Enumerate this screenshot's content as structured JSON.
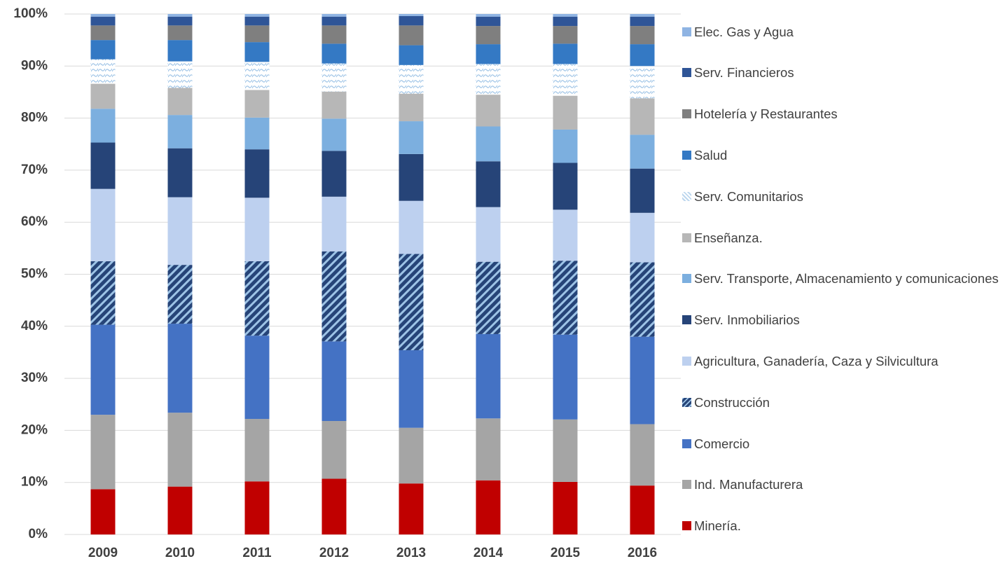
{
  "chart_data": {
    "type": "stacked_bar",
    "categories": [
      "2009",
      "2010",
      "2011",
      "2012",
      "2013",
      "2014",
      "2015",
      "2016"
    ],
    "ylim": [
      0,
      100
    ],
    "yticks": [
      {
        "value": 0,
        "label": "0%"
      },
      {
        "value": 10,
        "label": "10%"
      },
      {
        "value": 20,
        "label": "20%"
      },
      {
        "value": 30,
        "label": "30%"
      },
      {
        "value": 40,
        "label": "40%"
      },
      {
        "value": 50,
        "label": "50%"
      },
      {
        "value": 60,
        "label": "60%"
      },
      {
        "value": 70,
        "label": "70%"
      },
      {
        "value": 80,
        "label": "80%"
      },
      {
        "value": 90,
        "label": "90%"
      },
      {
        "value": 100,
        "label": "100%"
      }
    ],
    "grid": true,
    "legend": "right",
    "series": [
      {
        "name": "Minería.",
        "color": "#c00000",
        "values": [
          8.7,
          9.2,
          10.2,
          10.7,
          9.8,
          10.4,
          10.1,
          9.4
        ]
      },
      {
        "name": "Ind. Manufacturera",
        "color": "#a5a5a5",
        "values": [
          14.3,
          14.2,
          12.0,
          11.1,
          10.7,
          11.9,
          12.0,
          11.8
        ]
      },
      {
        "name": "Comercio",
        "color": "#4472c4",
        "values": [
          17.3,
          17.1,
          16.0,
          15.3,
          14.9,
          16.2,
          16.3,
          16.8
        ]
      },
      {
        "name": "Construcción",
        "color": "#264478",
        "pattern": "diagonal",
        "values": [
          12.2,
          11.3,
          14.3,
          17.3,
          18.5,
          13.9,
          14.2,
          14.3
        ]
      },
      {
        "name": "Agricultura, Ganadería, Caza y Silvicultura",
        "color": "#bdd0ef",
        "values": [
          13.9,
          13.0,
          12.2,
          10.5,
          10.2,
          10.5,
          9.8,
          9.5
        ]
      },
      {
        "name": "Serv. Inmobiliarios",
        "color": "#264478",
        "values": [
          8.9,
          9.4,
          9.3,
          8.8,
          9.0,
          8.8,
          9.0,
          8.5
        ]
      },
      {
        "name": "Serv. Transporte, Almacenamiento y comunicaciones",
        "color": "#7cafdf",
        "values": [
          6.5,
          6.4,
          6.1,
          6.2,
          6.3,
          6.7,
          6.4,
          6.5
        ]
      },
      {
        "name": "Enseñanza.",
        "color": "#b7b7b7",
        "values": [
          4.8,
          5.2,
          5.3,
          5.2,
          5.3,
          6.1,
          6.5,
          7.0
        ]
      },
      {
        "name": "Serv. Comunitarios",
        "color": "#bdd7ee",
        "pattern": "wave",
        "values": [
          4.7,
          5.1,
          5.4,
          5.4,
          5.5,
          5.9,
          6.1,
          6.2
        ]
      },
      {
        "name": "Salud",
        "color": "#3479c4",
        "values": [
          3.7,
          4.1,
          3.8,
          3.8,
          3.8,
          3.8,
          3.9,
          4.2
        ]
      },
      {
        "name": "Hotelería y Restaurantes",
        "color": "#7f7f7f",
        "values": [
          2.8,
          2.8,
          3.2,
          3.5,
          3.8,
          3.5,
          3.4,
          3.5
        ]
      },
      {
        "name": "Serv. Financieros",
        "color": "#2f5597",
        "values": [
          1.7,
          1.7,
          1.7,
          1.7,
          1.8,
          1.8,
          1.8,
          1.8
        ]
      },
      {
        "name": "Elec. Gas y Agua",
        "color": "#8fb4e3",
        "values": [
          0.5,
          0.5,
          0.5,
          0.5,
          0.4,
          0.5,
          0.5,
          0.5
        ]
      }
    ]
  }
}
